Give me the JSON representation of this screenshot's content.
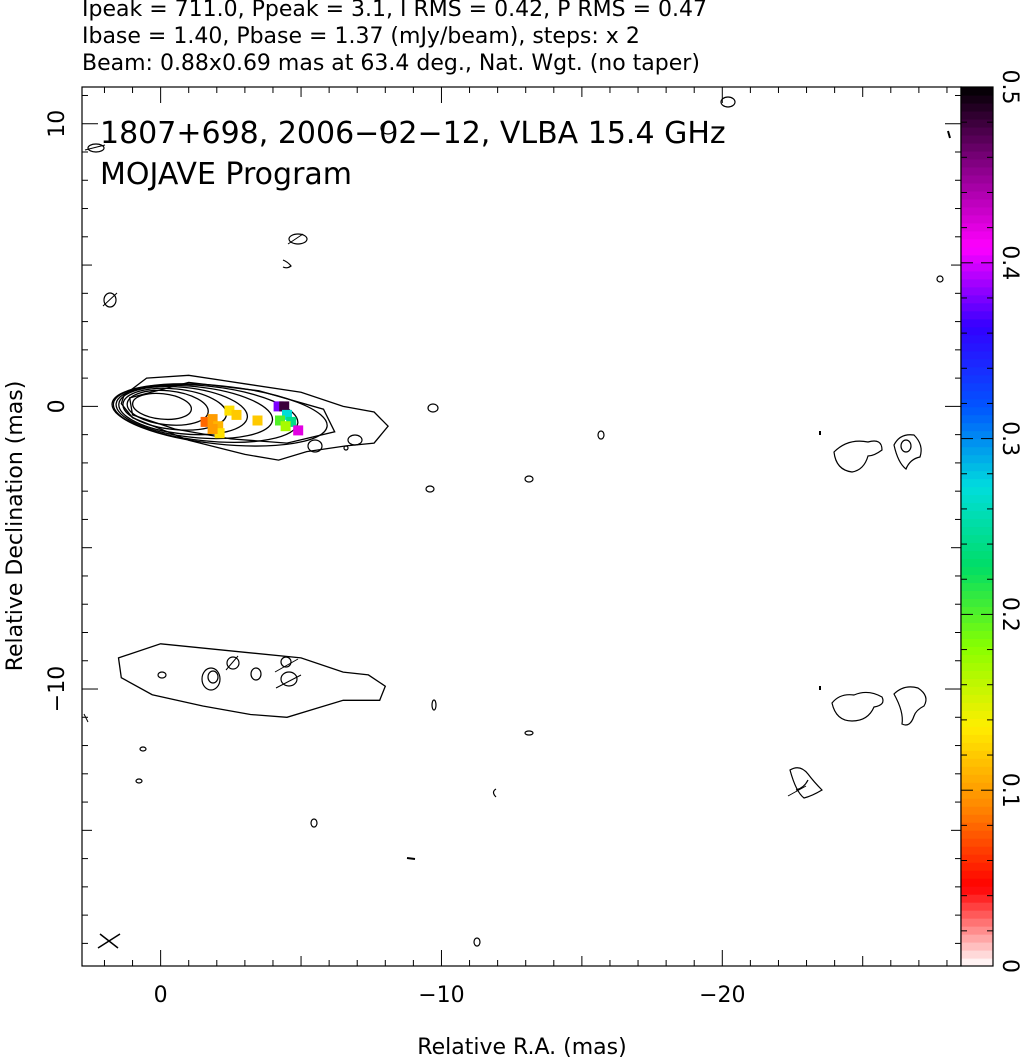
{
  "header": {
    "line1": "Ipeak = 711.0, Ppeak = 3.1, I RMS = 0.42, P RMS = 0.47",
    "line2": "Ibase = 1.40, Pbase = 1.37 (mJy/beam), steps: x 2",
    "line3": "Beam: 0.88x0.69 mas at 63.4 deg., Nat. Wgt. (no taper)"
  },
  "chart_data": {
    "type": "contour",
    "annotation_line1": "1807+698, 2006−02−12, VLBA 15.4 GHz",
    "annotation_line2": "MOJAVE Program",
    "xlabel": "Relative R.A. (mas)",
    "ylabel": "Relative Declination (mas)",
    "xlim": [
      2.8,
      -28.5
    ],
    "ylim": [
      -19.8,
      11.3
    ],
    "x_ticks": [
      {
        "value": 0,
        "label": "0"
      },
      {
        "value": -10,
        "label": "−10"
      },
      {
        "value": -20,
        "label": "−20"
      }
    ],
    "y_ticks": [
      {
        "value": 10,
        "label": "10"
      },
      {
        "value": 0,
        "label": "0"
      },
      {
        "value": -10,
        "label": "−10"
      }
    ],
    "colorbar": {
      "range": [
        0,
        0.5
      ],
      "ticks": [
        {
          "value": 0,
          "label": "0"
        },
        {
          "value": 0.1,
          "label": "0.1"
        },
        {
          "value": 0.2,
          "label": "0.2"
        },
        {
          "value": 0.3,
          "label": "0.3"
        },
        {
          "value": 0.4,
          "label": "0.4"
        },
        {
          "value": 0.5,
          "label": "0.5"
        }
      ],
      "colors": [
        "#ffffff",
        "#ff0000",
        "#ff8800",
        "#ffee00",
        "#88ff00",
        "#00dd66",
        "#00dddd",
        "#0055ff",
        "#3300ff",
        "#ff00ff",
        "#880088",
        "#000000"
      ]
    },
    "core_contours": [
      {
        "cx": -0.05,
        "cy": 0.0,
        "rx": 1.05,
        "ry": 0.45
      },
      {
        "cx": -0.25,
        "cy": -0.05,
        "rx": 1.45,
        "ry": 0.6
      },
      {
        "cx": -0.5,
        "cy": -0.1,
        "rx": 1.85,
        "ry": 0.72
      },
      {
        "cx": -0.8,
        "cy": -0.15,
        "rx": 2.3,
        "ry": 0.82
      },
      {
        "cx": -1.2,
        "cy": -0.2,
        "rx": 2.8,
        "ry": 0.9
      },
      {
        "cx": -1.6,
        "cy": -0.25,
        "rx": 3.3,
        "ry": 0.97
      },
      {
        "cx": -2.1,
        "cy": -0.3,
        "rx": 3.85,
        "ry": 1.03
      }
    ],
    "jet_outer_contour": [
      [
        1.3,
        0.4
      ],
      [
        0.5,
        1.0
      ],
      [
        -1.0,
        1.1
      ],
      [
        -3.0,
        0.8
      ],
      [
        -5.0,
        0.5
      ],
      [
        -6.5,
        0.0
      ],
      [
        -7.6,
        -0.2
      ],
      [
        -8.1,
        -0.7
      ],
      [
        -7.6,
        -1.3
      ],
      [
        -6.6,
        -1.4
      ],
      [
        -5.2,
        -1.6
      ],
      [
        -4.2,
        -1.9
      ],
      [
        -3.0,
        -1.7
      ],
      [
        -1.0,
        -1.2
      ],
      [
        1.0,
        -0.4
      ],
      [
        1.4,
        0.1
      ]
    ],
    "jet_mid_contour": [
      [
        1.1,
        0.3
      ],
      [
        -1.0,
        0.85
      ],
      [
        -3.5,
        0.55
      ],
      [
        -5.8,
        -0.1
      ],
      [
        -6.2,
        -0.9
      ],
      [
        -4.5,
        -1.3
      ],
      [
        -2.5,
        -1.15
      ],
      [
        -0.5,
        -0.8
      ],
      [
        1.0,
        -0.3
      ]
    ],
    "lower_contour": [
      [
        1.5,
        -8.9
      ],
      [
        0.0,
        -8.4
      ],
      [
        -3.0,
        -8.7
      ],
      [
        -5.0,
        -8.9
      ],
      [
        -6.5,
        -9.4
      ],
      [
        -7.4,
        -9.5
      ],
      [
        -8.0,
        -9.9
      ],
      [
        -7.8,
        -10.4
      ],
      [
        -6.5,
        -10.4
      ],
      [
        -5.5,
        -10.7
      ],
      [
        -4.5,
        -11.0
      ],
      [
        -3.2,
        -10.9
      ],
      [
        -1.5,
        -10.6
      ],
      [
        0.3,
        -10.2
      ],
      [
        1.4,
        -9.6
      ]
    ],
    "polarization_patches": [
      {
        "x": -1.6,
        "y": -0.55,
        "v": 0.08
      },
      {
        "x": -1.85,
        "y": -0.45,
        "v": 0.1
      },
      {
        "x": -2.05,
        "y": -0.7,
        "v": 0.11
      },
      {
        "x": -2.1,
        "y": -0.95,
        "v": 0.13
      },
      {
        "x": -1.85,
        "y": -0.8,
        "v": 0.1
      },
      {
        "x": -2.45,
        "y": -0.15,
        "v": 0.13
      },
      {
        "x": -2.7,
        "y": -0.3,
        "v": 0.12
      },
      {
        "x": -3.45,
        "y": -0.5,
        "v": 0.12
      },
      {
        "x": -4.2,
        "y": 0.0,
        "v": 0.38
      },
      {
        "x": -4.4,
        "y": 0.0,
        "v": 0.48
      },
      {
        "x": -4.5,
        "y": -0.3,
        "v": 0.27
      },
      {
        "x": -4.25,
        "y": -0.5,
        "v": 0.2
      },
      {
        "x": -4.65,
        "y": -0.55,
        "v": 0.24
      },
      {
        "x": -4.45,
        "y": -0.7,
        "v": 0.17
      },
      {
        "x": -4.9,
        "y": -0.85,
        "v": 0.42
      }
    ]
  }
}
